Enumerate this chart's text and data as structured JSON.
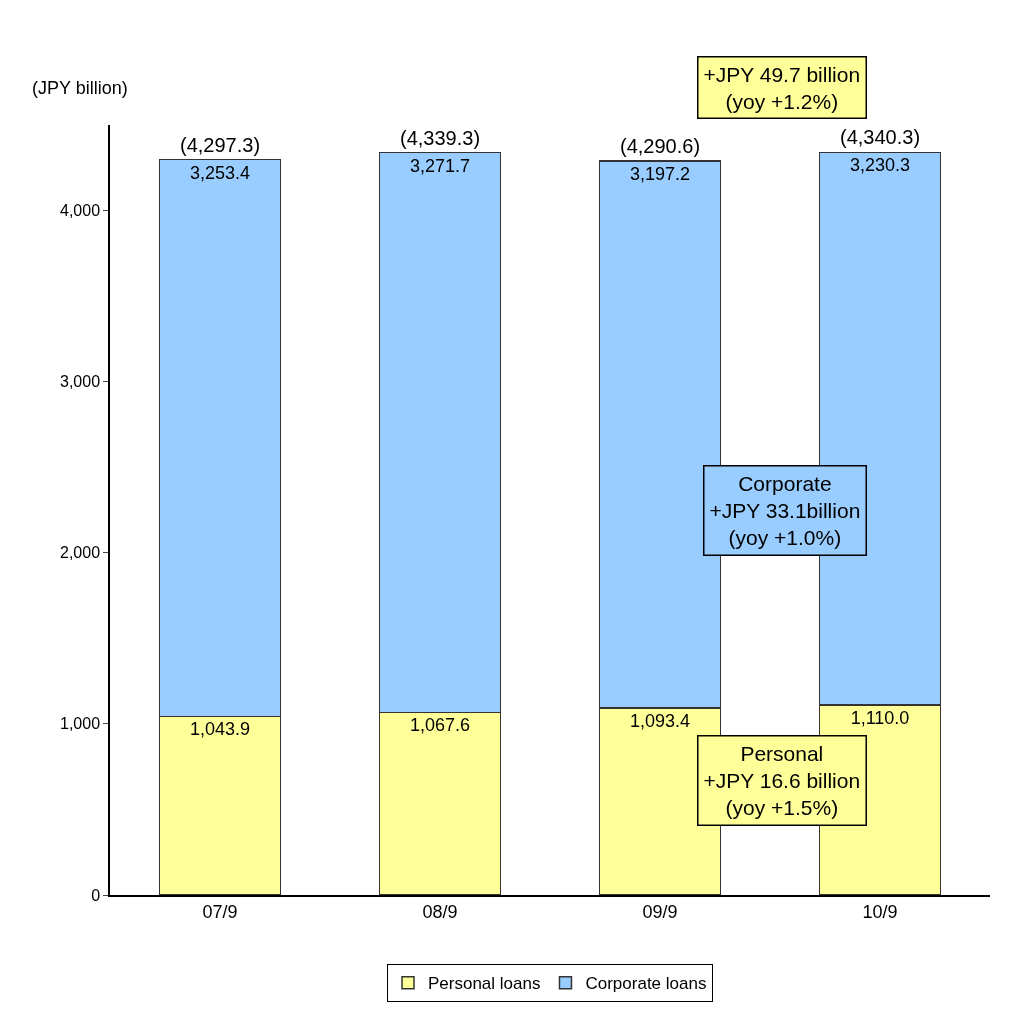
{
  "chart_data": {
    "type": "bar",
    "stacked": true,
    "ylabel": "(JPY billion)",
    "categories": [
      "07/9",
      "08/9",
      "09/9",
      "10/9"
    ],
    "series": [
      {
        "name": "Personal loans",
        "color": "#ffff99",
        "values": [
          1043.9,
          1067.6,
          1093.4,
          1110.0
        ],
        "value_labels": [
          "1,043.9",
          "1,067.6",
          "1,093.4",
          "1,110.0"
        ]
      },
      {
        "name": "Corporate loans",
        "color": "#99ccff",
        "values": [
          3253.4,
          3271.7,
          3197.2,
          3230.3
        ],
        "value_labels": [
          "3,253.4",
          "3,271.7",
          "3,197.2",
          "3,230.3"
        ]
      }
    ],
    "totals": [
      "(4,297.3)",
      "(4,339.3)",
      "(4,290.6)",
      "(4,340.3)"
    ],
    "ylim": [
      0,
      4500
    ],
    "yticks": [
      0,
      {
        "value": 1000,
        "label": "1,000"
      },
      {
        "value": 2000,
        "label": "2,000"
      },
      {
        "value": 3000,
        "label": "3,000"
      },
      {
        "value": 4000,
        "label": "4,000"
      }
    ],
    "legend": "bottom",
    "annotations": [
      "+JPY 49.7 billion\n(yoy +1.2%)",
      "Corporate\n+JPY 33.1billion\n(yoy +1.0%)",
      "Personal\n+JPY 16.6 billion\n(yoy +1.5%)"
    ]
  }
}
